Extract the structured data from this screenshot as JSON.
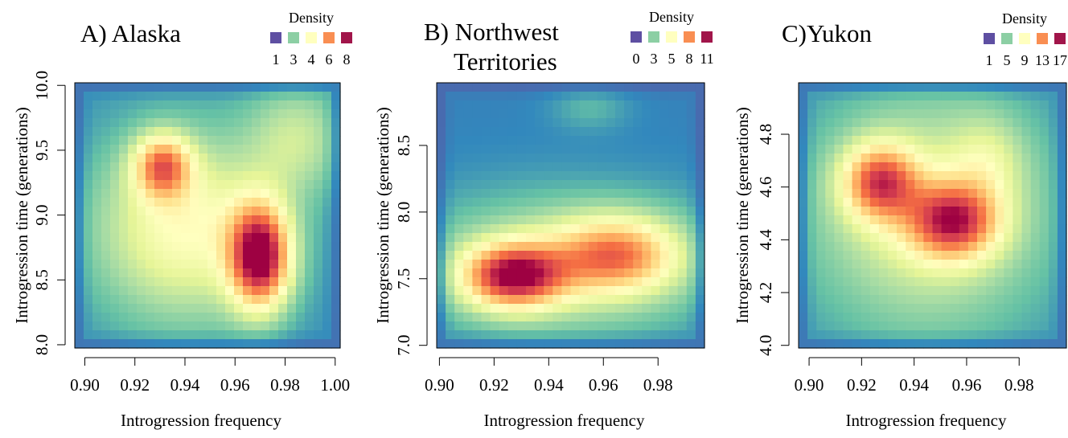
{
  "ylabel": "Introgression time (generations)",
  "xlabel": "Introgression frequency",
  "legend_title": "Density",
  "palette": [
    "#5E4FA2",
    "#3288BD",
    "#66C2A5",
    "#ABDDA4",
    "#E6F598",
    "#FFFFBF",
    "#FEE08B",
    "#FDAE61",
    "#F46D43",
    "#D53E4F",
    "#9E0142"
  ],
  "legend_colors": [
    "#5E4FA2",
    "#8CCFA4",
    "#FFFFBF",
    "#F98E52",
    "#A1154A"
  ],
  "chart_data": [
    {
      "type": "heatmap",
      "title": "A) Alaska",
      "xlabel": "Introgression frequency",
      "ylabel": "Introgression time (generations)",
      "xlim": [
        0.896,
        1.002
      ],
      "ylim": [
        7.975,
        10.02
      ],
      "xticks": [
        "0.90",
        "0.92",
        "0.94",
        "0.96",
        "0.98",
        "1.00"
      ],
      "yticks": [
        "8.0",
        "8.5",
        "9.0",
        "9.5",
        "10.0"
      ],
      "legend_labels": [
        "1",
        "3",
        "4",
        "6",
        "8"
      ],
      "density_range": [
        0,
        9
      ],
      "grid_cols": 30,
      "grid_rows": 30,
      "peaks": [
        {
          "x": 0.97,
          "y": 8.68,
          "height": 7.6,
          "sx": 0.0085,
          "sy": 0.28
        },
        {
          "x": 0.931,
          "y": 9.38,
          "height": 4.8,
          "sx": 0.008,
          "sy": 0.17
        },
        {
          "x": 0.94,
          "y": 8.9,
          "height": 3.5,
          "sx": 0.026,
          "sy": 0.5
        },
        {
          "x": 0.985,
          "y": 9.6,
          "height": 2.0,
          "sx": 0.014,
          "sy": 0.3
        }
      ],
      "base": 1.0
    },
    {
      "type": "heatmap",
      "title": "B) Northwest Territories",
      "title_lines": [
        "B) Northwest",
        "Territories"
      ],
      "xlabel": "Introgression frequency",
      "ylabel": "Introgression time (generations)",
      "xlim": [
        0.899,
        0.997
      ],
      "ylim": [
        6.98,
        8.97
      ],
      "xticks": [
        "0.90",
        "0.92",
        "0.94",
        "0.96",
        "0.98"
      ],
      "yticks": [
        "7.0",
        "7.5",
        "8.0",
        "8.5"
      ],
      "legend_labels": [
        "0",
        "3",
        "5",
        "8",
        "11"
      ],
      "density_range": [
        0,
        11
      ],
      "grid_cols": 30,
      "grid_rows": 30,
      "peaks": [
        {
          "x": 0.927,
          "y": 7.52,
          "height": 8.0,
          "sx": 0.013,
          "sy": 0.17
        },
        {
          "x": 0.965,
          "y": 7.68,
          "height": 5.5,
          "sx": 0.016,
          "sy": 0.2
        },
        {
          "x": 0.945,
          "y": 7.6,
          "height": 3.0,
          "sx": 0.04,
          "sy": 0.38
        },
        {
          "x": 0.955,
          "y": 8.78,
          "height": 1.0,
          "sx": 0.01,
          "sy": 0.12
        }
      ],
      "base": 1.0
    },
    {
      "type": "heatmap",
      "title": "C)Yukon",
      "xlabel": "Introgression frequency",
      "ylabel": "Introgression time (generations)",
      "xlim": [
        0.896,
        0.998
      ],
      "ylim": [
        3.99,
        4.995
      ],
      "xticks": [
        "0.90",
        "0.92",
        "0.94",
        "0.96",
        "0.98"
      ],
      "yticks": [
        "4.0",
        "4.2",
        "4.4",
        "4.6",
        "4.8"
      ],
      "legend_labels": [
        "1",
        "5",
        "9",
        "13",
        "17"
      ],
      "density_range": [
        0,
        19
      ],
      "grid_cols": 30,
      "grid_rows": 30,
      "peaks": [
        {
          "x": 0.927,
          "y": 4.62,
          "height": 11.0,
          "sx": 0.01,
          "sy": 0.1
        },
        {
          "x": 0.955,
          "y": 4.47,
          "height": 11.5,
          "sx": 0.012,
          "sy": 0.1
        },
        {
          "x": 0.945,
          "y": 4.5,
          "height": 6.0,
          "sx": 0.032,
          "sy": 0.32
        },
        {
          "x": 0.968,
          "y": 4.7,
          "height": 3.0,
          "sx": 0.01,
          "sy": 0.12
        }
      ],
      "base": 2.0
    }
  ]
}
